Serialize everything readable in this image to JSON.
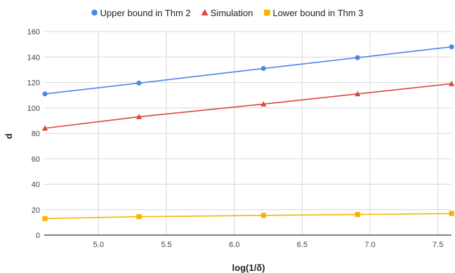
{
  "chart_data": {
    "type": "line",
    "title": "",
    "xlabel": "log(1/δ)",
    "ylabel": "d",
    "xlim": [
      4.6,
      7.6
    ],
    "ylim": [
      0,
      160
    ],
    "x_ticks": [
      5.0,
      5.5,
      6.0,
      6.5,
      7.0,
      7.5
    ],
    "x_tick_labels": [
      "5.0",
      "5.5",
      "6.0",
      "6.5",
      "7.0",
      "7.5"
    ],
    "y_ticks": [
      0,
      20,
      40,
      60,
      80,
      100,
      120,
      140,
      160
    ],
    "y_tick_labels": [
      "0",
      "20",
      "40",
      "60",
      "80",
      "100",
      "120",
      "140",
      "160"
    ],
    "grid": true,
    "legend_position": "top",
    "x": [
      4.605,
      5.298,
      6.215,
      6.908,
      7.601
    ],
    "series": [
      {
        "name": "Upper bound in Thm 2",
        "color": "#4a86e8",
        "marker": "circle",
        "values": [
          111,
          119.5,
          131,
          139.5,
          148
        ]
      },
      {
        "name": "Simulation",
        "color": "#e0453a",
        "marker": "triangle",
        "values": [
          84,
          93,
          103,
          111,
          119
        ]
      },
      {
        "name": "Lower bound in Thm 3",
        "color": "#f6b400",
        "marker": "square",
        "values": [
          13,
          14.5,
          15.5,
          16.2,
          17
        ]
      }
    ]
  }
}
